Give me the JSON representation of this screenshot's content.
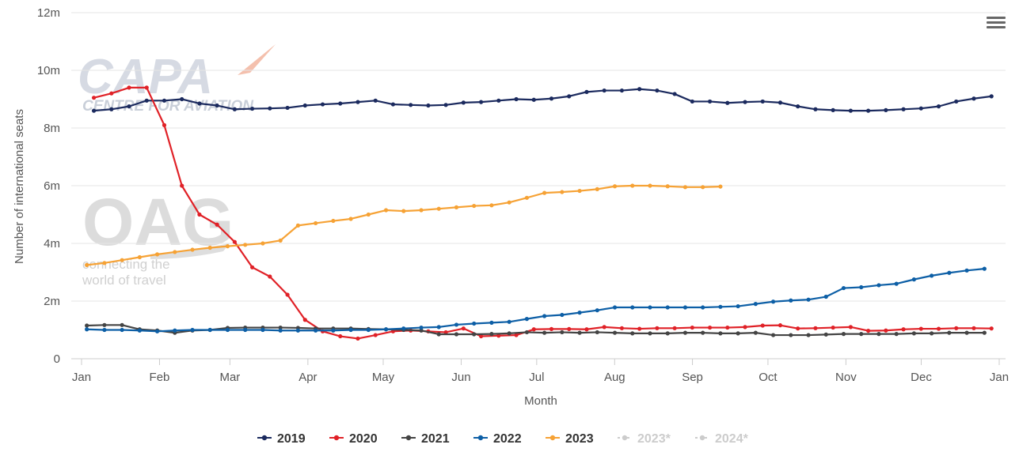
{
  "chart_data": {
    "type": "line",
    "xlabel": "Month",
    "ylabel": "Number of international seats",
    "ylim": [
      0,
      12000000
    ],
    "yticks": [
      {
        "value": 0,
        "label": "0"
      },
      {
        "value": 2000000,
        "label": "2m"
      },
      {
        "value": 4000000,
        "label": "4m"
      },
      {
        "value": 6000000,
        "label": "6m"
      },
      {
        "value": 8000000,
        "label": "8m"
      },
      {
        "value": 10000000,
        "label": "10m"
      },
      {
        "value": 12000000,
        "label": "12m"
      }
    ],
    "xticks": [
      {
        "week": 0,
        "label": "Jan"
      },
      {
        "week": 4.43,
        "label": "Feb"
      },
      {
        "week": 8.43,
        "label": "Mar"
      },
      {
        "week": 12.86,
        "label": "Apr"
      },
      {
        "week": 17.14,
        "label": "May"
      },
      {
        "week": 21.57,
        "label": "Jun"
      },
      {
        "week": 25.86,
        "label": "Jul"
      },
      {
        "week": 30.29,
        "label": "Aug"
      },
      {
        "week": 34.71,
        "label": "Sep"
      },
      {
        "week": 39.0,
        "label": "Oct"
      },
      {
        "week": 43.43,
        "label": "Nov"
      },
      {
        "week": 47.71,
        "label": "Dec"
      },
      {
        "week": 52.14,
        "label": "Jan"
      }
    ],
    "grid": true,
    "legend_position": "bottom",
    "series": [
      {
        "name": "2019",
        "color": "#1b2a5e",
        "start_week": 0.7,
        "visible": true,
        "values": [
          8.6,
          8.65,
          8.75,
          8.95,
          8.95,
          9.0,
          8.85,
          8.78,
          8.65,
          8.67,
          8.68,
          8.7,
          8.78,
          8.82,
          8.85,
          8.9,
          8.95,
          8.82,
          8.8,
          8.78,
          8.8,
          8.88,
          8.9,
          8.95,
          9.0,
          8.98,
          9.02,
          9.1,
          9.25,
          9.3,
          9.3,
          9.35,
          9.3,
          9.18,
          8.92,
          8.92,
          8.87,
          8.9,
          8.92,
          8.88,
          8.75,
          8.65,
          8.62,
          8.6,
          8.6,
          8.62,
          8.65,
          8.68,
          8.75,
          8.92,
          9.02,
          9.1
        ]
      },
      {
        "name": "2020",
        "color": "#e02127",
        "start_week": 0.7,
        "visible": true,
        "values": [
          9.05,
          9.2,
          9.4,
          9.4,
          8.1,
          6.0,
          5.0,
          4.65,
          4.05,
          3.17,
          2.85,
          2.22,
          1.35,
          0.95,
          0.78,
          0.7,
          0.82,
          0.95,
          0.98,
          0.95,
          0.92,
          1.05,
          0.78,
          0.8,
          0.82,
          1.02,
          1.03,
          1.03,
          1.02,
          1.1,
          1.06,
          1.04,
          1.06,
          1.06,
          1.08,
          1.08,
          1.08,
          1.1,
          1.15,
          1.16,
          1.05,
          1.06,
          1.08,
          1.1,
          0.97,
          0.98,
          1.02,
          1.04,
          1.04,
          1.06,
          1.06,
          1.05
        ]
      },
      {
        "name": "2021",
        "color": "#444444",
        "start_week": 0.3,
        "visible": true,
        "values": [
          1.15,
          1.17,
          1.17,
          1.02,
          0.98,
          0.9,
          0.98,
          1.0,
          1.07,
          1.08,
          1.08,
          1.08,
          1.07,
          1.05,
          1.05,
          1.05,
          1.03,
          1.02,
          1.0,
          0.98,
          0.85,
          0.85,
          0.85,
          0.86,
          0.88,
          0.92,
          0.9,
          0.92,
          0.9,
          0.92,
          0.9,
          0.88,
          0.88,
          0.88,
          0.9,
          0.9,
          0.88,
          0.88,
          0.9,
          0.82,
          0.82,
          0.82,
          0.84,
          0.86,
          0.86,
          0.86,
          0.86,
          0.88,
          0.88,
          0.9,
          0.9,
          0.9
        ]
      },
      {
        "name": "2022",
        "color": "#0d5fa6",
        "start_week": 0.3,
        "visible": true,
        "values": [
          1.02,
          1.0,
          1.0,
          0.98,
          0.95,
          0.98,
          1.0,
          1.0,
          1.0,
          1.0,
          1.0,
          0.98,
          0.98,
          0.98,
          0.98,
          1.0,
          1.0,
          1.02,
          1.05,
          1.08,
          1.1,
          1.18,
          1.22,
          1.25,
          1.28,
          1.38,
          1.48,
          1.52,
          1.6,
          1.68,
          1.78,
          1.78,
          1.78,
          1.78,
          1.78,
          1.78,
          1.8,
          1.82,
          1.9,
          1.98,
          2.02,
          2.05,
          2.15,
          2.45,
          2.48,
          2.55,
          2.6,
          2.75,
          2.88,
          2.98,
          3.06,
          3.12
        ]
      },
      {
        "name": "2023",
        "color": "#f6a235",
        "start_week": 0.3,
        "visible": true,
        "values": [
          3.25,
          3.32,
          3.42,
          3.52,
          3.62,
          3.7,
          3.78,
          3.85,
          3.9,
          3.95,
          4.0,
          4.1,
          4.62,
          4.7,
          4.78,
          4.85,
          5.0,
          5.15,
          5.12,
          5.15,
          5.2,
          5.25,
          5.3,
          5.32,
          5.42,
          5.58,
          5.75,
          5.78,
          5.82,
          5.88,
          5.98,
          6.0,
          6.0,
          5.98,
          5.95,
          5.95,
          5.97
        ]
      },
      {
        "name": "2023*",
        "color": "#cccccc",
        "visible": false
      },
      {
        "name": "2024*",
        "color": "#cccccc",
        "visible": false
      }
    ]
  },
  "watermarks": {
    "capa_title": "CAPA",
    "capa_subtitle": "CENTRE FOR AVIATION",
    "oag_title": "OAG",
    "oag_line1": "connecting the",
    "oag_line2": "world of travel"
  },
  "menu_icon": "hamburger-menu-icon"
}
